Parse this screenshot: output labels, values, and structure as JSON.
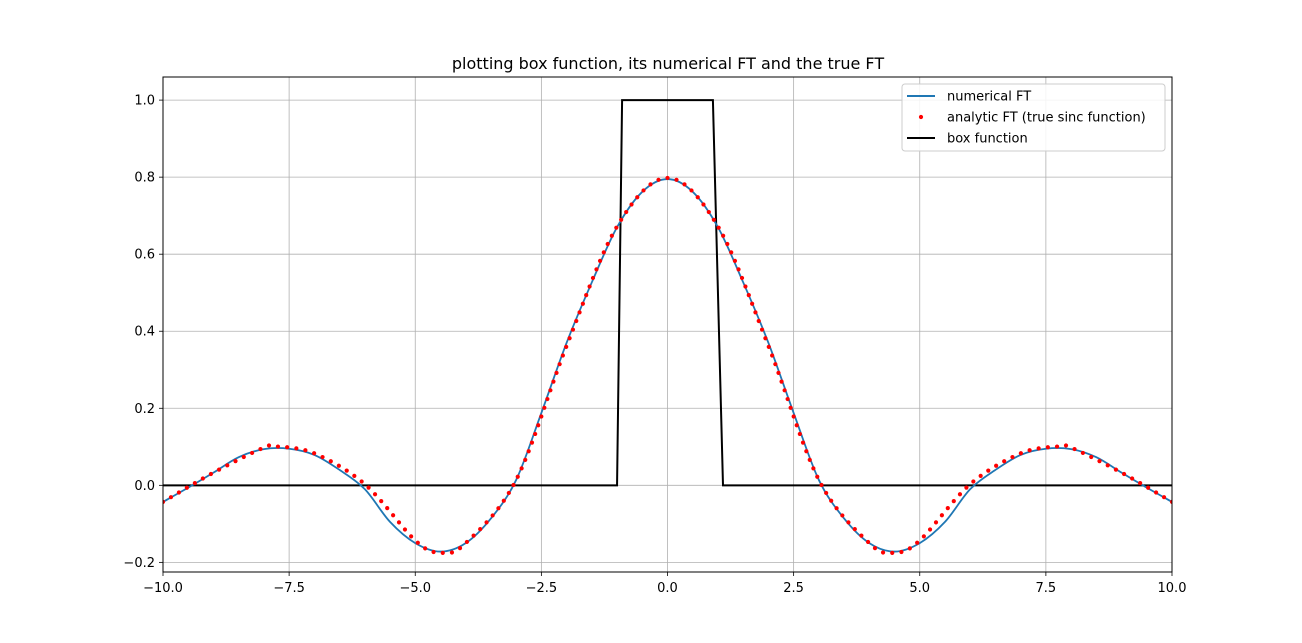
{
  "chart_data": {
    "type": "line",
    "title": "plotting box function, its numerical FT and the true FT",
    "xlabel": "",
    "ylabel": "",
    "xlim": [
      -10.0,
      10.0
    ],
    "ylim": [
      -0.225,
      1.06
    ],
    "grid": true,
    "legend_position": "top-right",
    "x_ticks": [
      -10.0,
      -7.5,
      -5.0,
      -2.5,
      0.0,
      2.5,
      5.0,
      7.5,
      10.0
    ],
    "x_tick_labels": [
      "−10.0",
      "−7.5",
      "−5.0",
      "−2.5",
      "0.0",
      "2.5",
      "5.0",
      "7.5",
      "10.0"
    ],
    "y_ticks": [
      -0.2,
      0.0,
      0.2,
      0.4,
      0.6,
      0.8,
      1.0
    ],
    "y_tick_labels": [
      "−0.2",
      "0.0",
      "0.2",
      "0.4",
      "0.6",
      "0.8",
      "1.0"
    ],
    "series": [
      {
        "name": "numerical FT",
        "style": "line",
        "color": "#1f77b4",
        "x": [
          -10.0,
          -9.5,
          -9.0,
          -8.5,
          -8.0,
          -7.5,
          -7.0,
          -6.5,
          -6.0,
          -5.5,
          -5.0,
          -4.5,
          -4.0,
          -3.5,
          -3.0,
          -2.5,
          -2.0,
          -1.5,
          -1.0,
          -0.5,
          0.0,
          0.5,
          1.0,
          1.5,
          2.0,
          2.5,
          3.0,
          3.5,
          4.0,
          4.5,
          5.0,
          5.5,
          6.0,
          6.5,
          7.0,
          7.5,
          8.0,
          8.5,
          9.0,
          9.5,
          10.0
        ],
        "y": [
          -0.043,
          -0.006,
          0.033,
          0.073,
          0.094,
          0.095,
          0.079,
          0.04,
          -0.01,
          -0.095,
          -0.15,
          -0.172,
          -0.15,
          -0.086,
          0.014,
          0.188,
          0.37,
          0.527,
          0.67,
          0.762,
          0.795,
          0.762,
          0.67,
          0.527,
          0.37,
          0.188,
          0.014,
          -0.086,
          -0.15,
          -0.172,
          -0.15,
          -0.095,
          -0.01,
          0.04,
          0.079,
          0.095,
          0.094,
          0.073,
          0.033,
          -0.006,
          -0.043
        ]
      },
      {
        "name": "analytic FT (true sinc function)",
        "style": "dots",
        "color": "#ff0000",
        "x": [
          -10.0,
          -9.0,
          -8.0,
          -7.75,
          -7.0,
          -6.0,
          -5.0,
          -4.5,
          -4.0,
          -3.0,
          -2.0,
          -1.0,
          0.0,
          1.0,
          2.0,
          3.0,
          4.0,
          4.5,
          5.0,
          6.0,
          7.0,
          7.75,
          8.0,
          9.0,
          10.0
        ],
        "y": [
          -0.043,
          0.033,
          0.098,
          0.101,
          0.083,
          0.003,
          -0.143,
          -0.175,
          -0.15,
          0.014,
          0.362,
          0.672,
          0.798,
          0.672,
          0.362,
          0.014,
          -0.15,
          -0.175,
          -0.143,
          0.003,
          0.083,
          0.101,
          0.098,
          0.033,
          -0.043
        ]
      },
      {
        "name": "box function",
        "style": "line",
        "color": "#000000",
        "x": [
          -10.0,
          -1.0,
          -0.9,
          0.0,
          0.9,
          1.1,
          10.0
        ],
        "y": [
          0.0,
          0.0,
          1.0,
          1.0,
          1.0,
          0.0,
          0.0
        ]
      }
    ]
  }
}
